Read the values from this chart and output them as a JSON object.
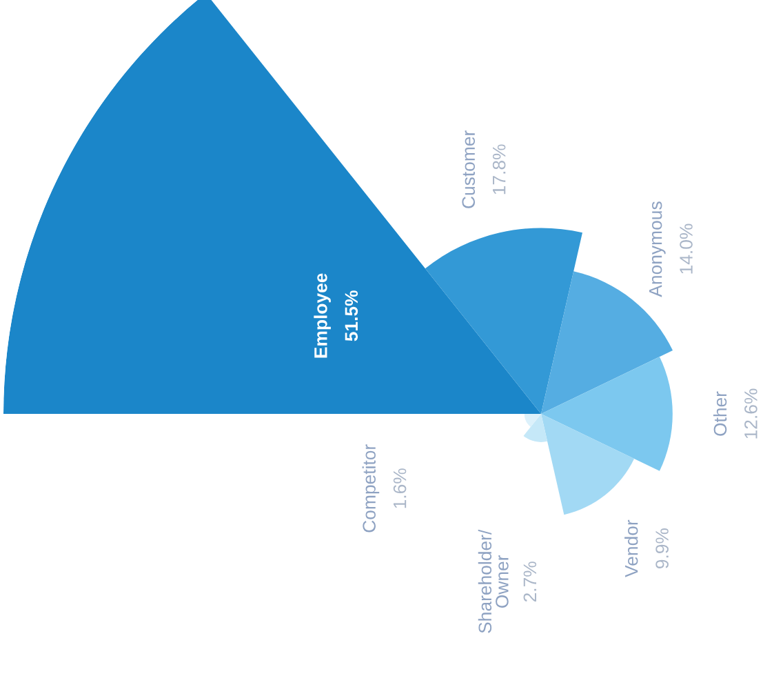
{
  "chart_data": {
    "type": "other",
    "categories": [
      "Employee",
      "Customer",
      "Anonymous",
      "Other",
      "Vendor",
      "Shareholder/\nOwner",
      "Competitor"
    ],
    "values": [
      51.5,
      17.8,
      14.0,
      12.6,
      9.9,
      2.7,
      1.6
    ],
    "value_labels": [
      "51.5%",
      "17.8%",
      "14.0%",
      "12.6%",
      "9.9%",
      "2.7%",
      "1.6%"
    ],
    "colors": [
      "#1b86c9",
      "#3399d6",
      "#55ade2",
      "#7cc8ef",
      "#a2d9f4",
      "#c5e8f8",
      "#dcf1fb"
    ],
    "legend": false
  }
}
